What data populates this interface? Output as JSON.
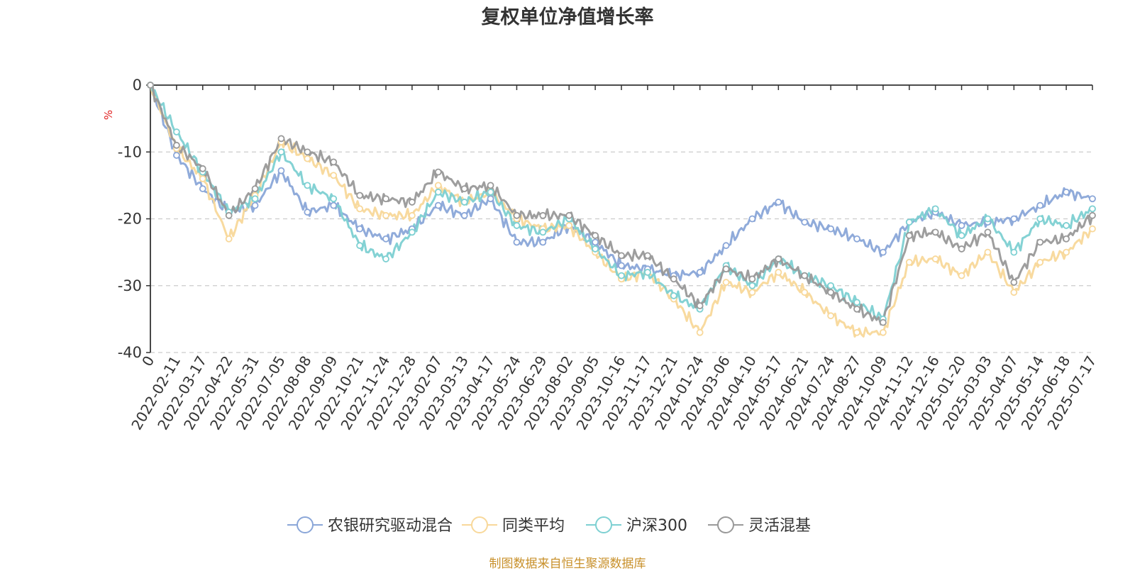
{
  "chart_data": {
    "type": "line",
    "title": "复权单位净值增长率",
    "ylabel": "%",
    "xlabel": "",
    "ylim": [
      -40,
      0
    ],
    "yticks": [
      "0",
      "-10",
      "-20",
      "-30",
      "-40"
    ],
    "grid": "horizontal dashed",
    "legend_position": "bottom-center",
    "categories": [
      "0",
      "2022-02-11",
      "2022-03-17",
      "2022-04-22",
      "2022-05-31",
      "2022-07-05",
      "2022-08-08",
      "2022-09-09",
      "2022-10-21",
      "2022-11-24",
      "2022-12-28",
      "2023-02-07",
      "2023-03-13",
      "2023-04-17",
      "2023-05-24",
      "2023-06-29",
      "2023-08-02",
      "2023-09-05",
      "2023-10-16",
      "2023-11-17",
      "2023-12-21",
      "2024-01-24",
      "2024-03-06",
      "2024-04-10",
      "2024-05-17",
      "2024-06-21",
      "2024-07-24",
      "2024-08-27",
      "2024-10-09",
      "2024-11-12",
      "2024-12-16",
      "2025-01-20",
      "2025-03-03",
      "2025-04-07",
      "2025-05-14",
      "2025-06-18",
      "2025-07-17"
    ],
    "series": [
      {
        "name": "农银研究驱动混合",
        "color": "#8aa6d8",
        "values": [
          0,
          -10.5,
          -15.5,
          -19,
          -18,
          -12.8,
          -19,
          -18,
          -21.5,
          -23,
          -21.5,
          -18,
          -19.5,
          -17,
          -23.5,
          -23.5,
          -21,
          -23.5,
          -27,
          -27.5,
          -28.5,
          -28,
          -24,
          -20,
          -17.5,
          -20.5,
          -21.5,
          -23,
          -25,
          -20.5,
          -19,
          -21,
          -20.5,
          -20,
          -18,
          -16,
          -17
        ]
      },
      {
        "name": "同类平均",
        "color": "#f8d89a",
        "values": [
          0,
          -9.5,
          -14,
          -23,
          -16.5,
          -8.5,
          -11,
          -13.5,
          -18.5,
          -19.5,
          -19.5,
          -15,
          -17.5,
          -16,
          -20,
          -21.5,
          -21,
          -25,
          -29,
          -28,
          -32,
          -37,
          -29.5,
          -31,
          -28,
          -31,
          -34.5,
          -37,
          -37,
          -26.5,
          -26,
          -28.5,
          -25,
          -31,
          -26.5,
          -25,
          -21.5
        ]
      },
      {
        "name": "沪深300",
        "color": "#7dd0d2",
        "values": [
          0,
          -7,
          -13,
          -19,
          -17,
          -10,
          -15,
          -17,
          -24,
          -26,
          -22,
          -16,
          -17.5,
          -16,
          -21,
          -22,
          -20,
          -24.5,
          -28.5,
          -28,
          -31.5,
          -33.5,
          -27,
          -30,
          -26,
          -28.5,
          -30,
          -32.5,
          -35,
          -20.5,
          -18.5,
          -22.5,
          -20,
          -25,
          -20,
          -21,
          -18.5
        ]
      },
      {
        "name": "灵活混基",
        "color": "#999999",
        "values": [
          0,
          -9,
          -12.5,
          -19.5,
          -15.5,
          -8,
          -10,
          -11.5,
          -16.5,
          -17,
          -17.5,
          -13,
          -15.5,
          -15,
          -19.5,
          -19.5,
          -19.5,
          -22.5,
          -25.5,
          -25.5,
          -29,
          -33,
          -27.5,
          -29,
          -26,
          -28.5,
          -31,
          -33.5,
          -35.5,
          -22.5,
          -22,
          -24.5,
          -22,
          -29.5,
          -23.5,
          -23,
          -19.5
        ]
      }
    ]
  },
  "footer": {
    "source": "制图数据来自恒生聚源数据库"
  }
}
